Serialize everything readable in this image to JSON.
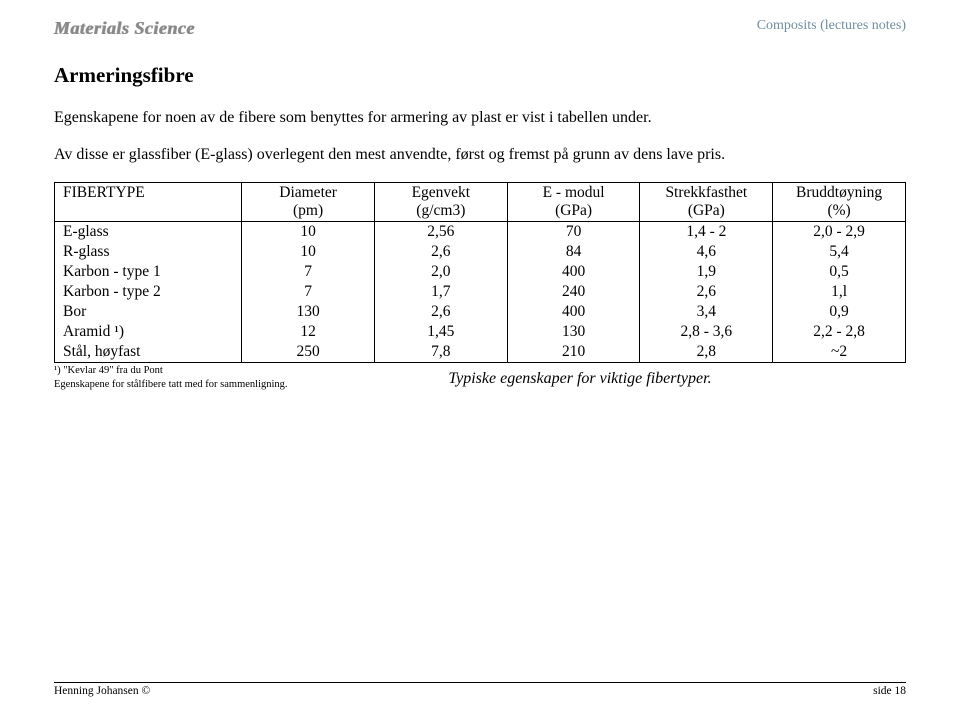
{
  "header": {
    "logo": "Materials Science",
    "right": "Composits (lectures notes)"
  },
  "section_title": "Armeringsfibre",
  "para1": "Egenskapene for noen av de fibere som benyttes for armering av plast er vist i tabellen under.",
  "para2": "Av disse er glassfiber (E-glass) overlegent den mest anvendte, først og fremst på grunn av dens lave pris.",
  "table": {
    "headers": [
      {
        "line1": "FIBERTYPE",
        "line2": ""
      },
      {
        "line1": "Diameter",
        "line2": "(pm)"
      },
      {
        "line1": "Egenvekt",
        "line2": "(g/cm3)"
      },
      {
        "line1": "E - modul",
        "line2": "(GPa)"
      },
      {
        "line1": "Strekkfasthet",
        "line2": "(GPa)"
      },
      {
        "line1": "Bruddtøyning",
        "line2": "(%)"
      }
    ],
    "rows": [
      [
        "E-glass",
        "10",
        "2,56",
        "70",
        "1,4 - 2",
        "2,0 - 2,9"
      ],
      [
        "R-glass",
        "10",
        "2,6",
        "84",
        "4,6",
        "5,4"
      ],
      [
        "Karbon - type 1",
        "7",
        "2,0",
        "400",
        "1,9",
        "0,5"
      ],
      [
        "Karbon - type 2",
        "7",
        "1,7",
        "240",
        "2,6",
        "1,l"
      ],
      [
        "Bor",
        "130",
        "2,6",
        "400",
        "3,4",
        "0,9"
      ],
      [
        "Aramid ¹)",
        "12",
        "1,45",
        "130",
        "2,8 - 3,6",
        "2,2 - 2,8"
      ],
      [
        "Stål, høyfast",
        "250",
        "7,8",
        "210",
        "2,8",
        "~2"
      ]
    ],
    "col_widths": [
      "22%",
      "15.6%",
      "15.6%",
      "15.6%",
      "15.6%",
      "15.6%"
    ]
  },
  "footnotes": {
    "l1": "¹) \"Kevlar 49\" fra du Pont",
    "l2": "Egenskapene for stålfibere tatt med for sammenligning."
  },
  "caption": "Typiske egenskaper for viktige fibertyper.",
  "footer": {
    "left": "Henning Johansen ©",
    "right": "side 18"
  }
}
